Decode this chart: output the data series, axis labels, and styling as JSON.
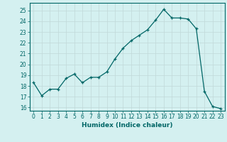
{
  "x": [
    0,
    1,
    2,
    3,
    4,
    5,
    6,
    7,
    8,
    9,
    10,
    11,
    12,
    13,
    14,
    15,
    16,
    17,
    18,
    19,
    20,
    21,
    22,
    23
  ],
  "y": [
    18.3,
    17.1,
    17.7,
    17.7,
    18.7,
    19.1,
    18.3,
    18.8,
    18.8,
    19.3,
    20.5,
    21.5,
    22.2,
    22.7,
    23.2,
    24.1,
    25.1,
    24.3,
    24.3,
    24.2,
    23.3,
    17.5,
    16.1,
    15.9
  ],
  "xlabel": "Humidex (Indice chaleur)",
  "xlim": [
    -0.5,
    23.5
  ],
  "ylim": [
    15.7,
    25.7
  ],
  "yticks": [
    16,
    17,
    18,
    19,
    20,
    21,
    22,
    23,
    24,
    25
  ],
  "xticks": [
    0,
    1,
    2,
    3,
    4,
    5,
    6,
    7,
    8,
    9,
    10,
    11,
    12,
    13,
    14,
    15,
    16,
    17,
    18,
    19,
    20,
    21,
    22,
    23
  ],
  "line_color": "#006666",
  "marker": "+",
  "bg_color": "#d4f0f0",
  "grid_color": "#c0d8d8",
  "label_fontsize": 6.5,
  "tick_fontsize": 5.5
}
